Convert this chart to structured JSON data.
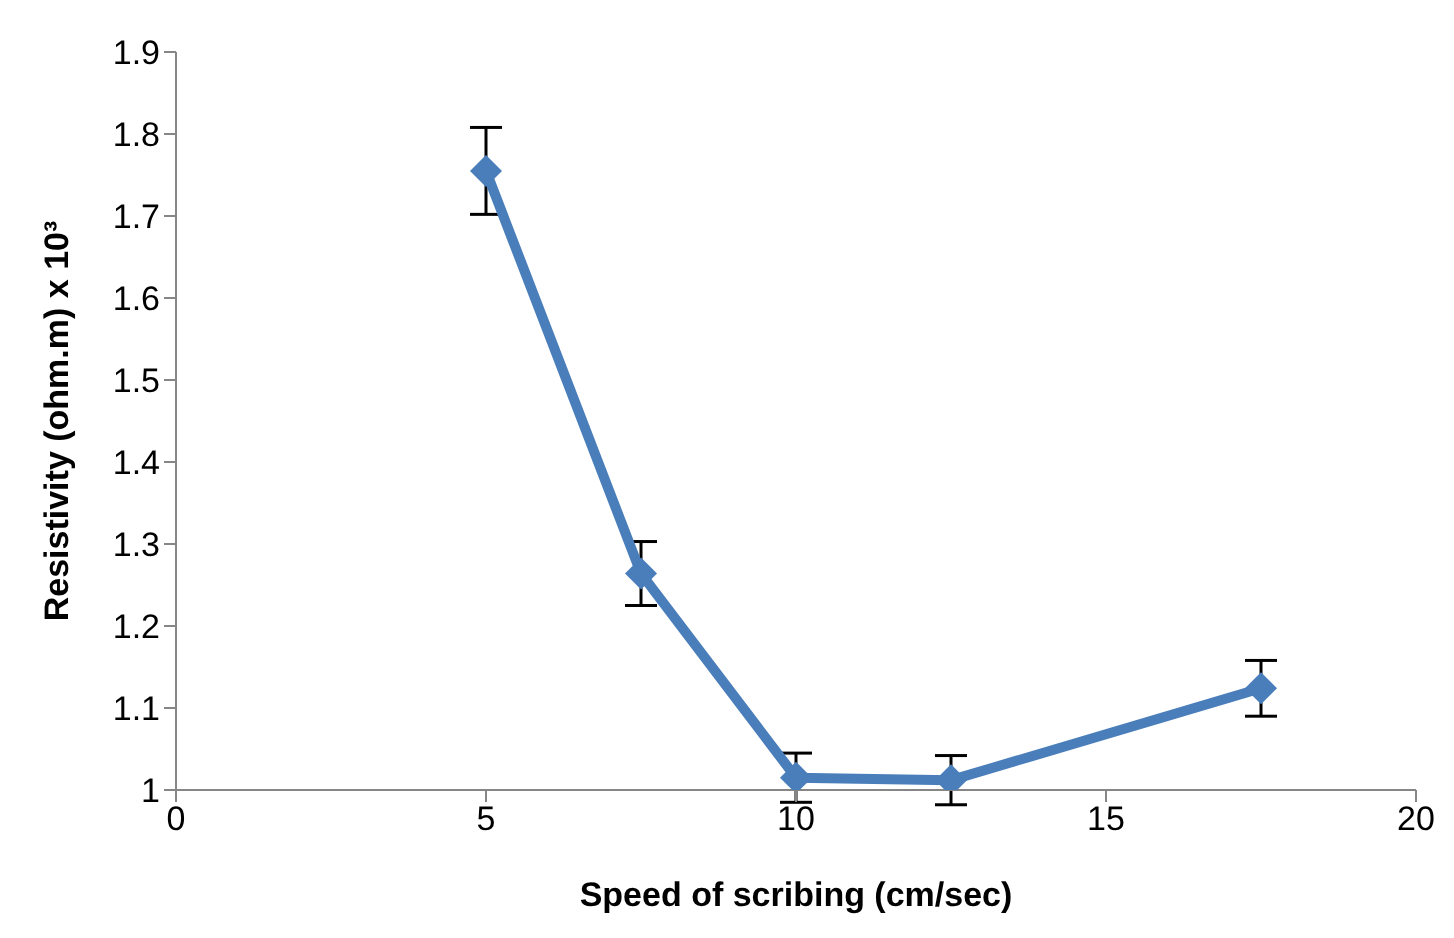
{
  "chart_data": {
    "type": "line",
    "xlabel": "Speed of scribing (cm/sec)",
    "ylabel": "Resistivity (ohm.m) x 10³",
    "x": [
      5,
      7.5,
      10,
      12.5,
      17.5
    ],
    "series": [
      {
        "color": "#4a7ebb",
        "values": [
          1.755,
          1.264,
          1.015,
          1.012,
          1.124
        ],
        "errors": [
          0.053,
          0.039,
          0.03,
          0.03,
          0.034
        ]
      }
    ],
    "xlim": [
      0,
      20
    ],
    "xticks": [
      0,
      5,
      10,
      15,
      20
    ],
    "ylim": [
      1,
      1.9
    ],
    "yticks": [
      1,
      1.1,
      1.2,
      1.3,
      1.4,
      1.5,
      1.6,
      1.7,
      1.8,
      1.9
    ],
    "grid": false,
    "legend": false,
    "marker": "diamond",
    "line_style": "solid"
  }
}
